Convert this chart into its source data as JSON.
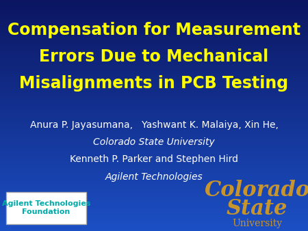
{
  "bg_color_top": "#0b1560",
  "bg_color_bottom": "#1b4fc4",
  "title_line1": "Compensation for Measurement",
  "title_line2": "Errors Due to Mechanical",
  "title_line3": "Misalignments in PCB Testing",
  "title_color": "#ffff00",
  "title_fontsize": 17,
  "author_line1": "Anura P. Jayasumana,   Yashwant K. Malaiya, Xin He,",
  "author_line2": "Colorado State University",
  "author_line3": "Kenneth P. Parker and Stephen Hird",
  "author_line4": "Agilent Technologies",
  "author_color": "#ffffff",
  "author_fontsize": 10,
  "agilent_box_text": "Agilent Technologies\nFoundation",
  "agilent_box_text_color": "#00aaaa",
  "agilent_box_bg": "#ffffff",
  "agilent_box_border": "#aaaaaa",
  "csu_text_line1": "Colorado",
  "csu_text_line2": "State",
  "csu_text_line3": "University",
  "csu_color": "#c8952c",
  "csu_fontsize_large": 22,
  "csu_fontsize_small": 10
}
